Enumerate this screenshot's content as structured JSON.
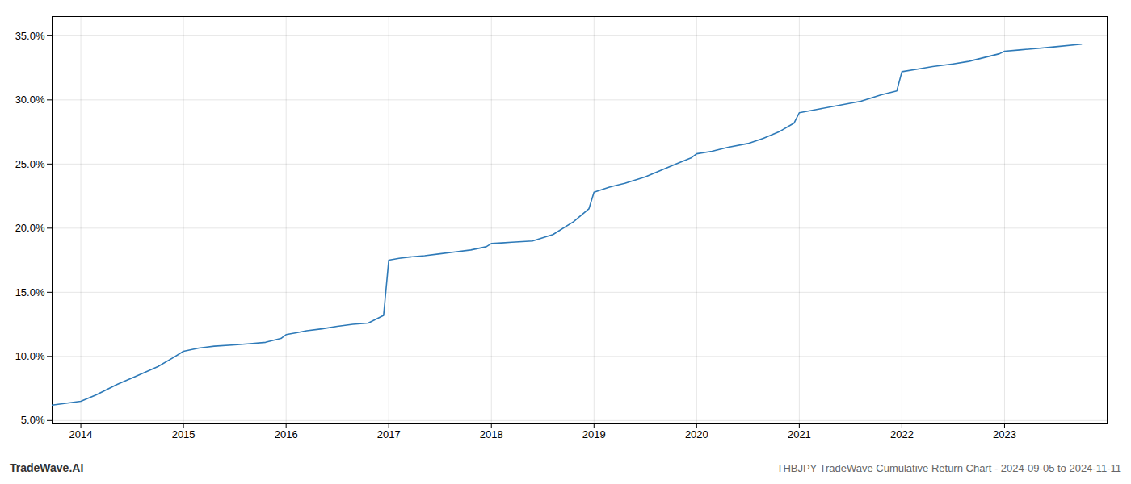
{
  "chart_data": {
    "type": "line",
    "title": "THBJPY TradeWave Cumulative Return Chart - 2024-09-05 to 2024-11-11",
    "annotations": [
      "TradeWave.AI"
    ],
    "color": "#2e7ab8",
    "x": [
      2013.72,
      2014.0,
      2014.15,
      2014.35,
      2014.55,
      2014.75,
      2014.9,
      2015.0,
      2015.15,
      2015.3,
      2015.5,
      2015.65,
      2015.8,
      2015.95,
      2016.0,
      2016.1,
      2016.2,
      2016.35,
      2016.5,
      2016.65,
      2016.8,
      2016.95,
      2017.0,
      2017.1,
      2017.2,
      2017.35,
      2017.5,
      2017.65,
      2017.8,
      2017.95,
      2018.0,
      2018.1,
      2018.2,
      2018.4,
      2018.6,
      2018.8,
      2018.95,
      2019.0,
      2019.15,
      2019.3,
      2019.5,
      2019.65,
      2019.8,
      2019.95,
      2020.0,
      2020.15,
      2020.3,
      2020.5,
      2020.65,
      2020.8,
      2020.95,
      2021.0,
      2021.2,
      2021.4,
      2021.6,
      2021.8,
      2021.95,
      2022.0,
      2022.15,
      2022.3,
      2022.5,
      2022.65,
      2022.8,
      2022.95,
      2023.0,
      2023.15,
      2023.3,
      2023.5,
      2023.75
    ],
    "values": [
      6.2,
      6.5,
      7.0,
      7.8,
      8.5,
      9.2,
      9.9,
      10.4,
      10.65,
      10.8,
      10.9,
      11.0,
      11.1,
      11.4,
      11.7,
      11.85,
      12.0,
      12.15,
      12.35,
      12.5,
      12.6,
      13.2,
      17.5,
      17.65,
      17.75,
      17.85,
      18.0,
      18.15,
      18.3,
      18.55,
      18.8,
      18.85,
      18.9,
      19.0,
      19.5,
      20.5,
      21.5,
      22.8,
      23.2,
      23.5,
      24.0,
      24.5,
      25.0,
      25.5,
      25.8,
      26.0,
      26.3,
      26.6,
      27.0,
      27.5,
      28.2,
      29.0,
      29.3,
      29.6,
      29.9,
      30.4,
      30.7,
      32.2,
      32.4,
      32.6,
      32.8,
      33.0,
      33.3,
      33.6,
      33.8,
      33.9,
      34.0,
      34.15,
      34.35
    ],
    "xlim": [
      2013.72,
      2024.0
    ],
    "xticks": [
      2014,
      2015,
      2016,
      2017,
      2018,
      2019,
      2020,
      2021,
      2022,
      2023
    ],
    "ylim": [
      4.8,
      36.5
    ],
    "yticks": [
      {
        "value": 5.0,
        "label": "5.0%"
      },
      {
        "value": 10.0,
        "label": "10.0%"
      },
      {
        "value": 15.0,
        "label": "15.0%"
      },
      {
        "value": 20.0,
        "label": "20.0%"
      },
      {
        "value": 25.0,
        "label": "25.0%"
      },
      {
        "value": 30.0,
        "label": "30.0%"
      },
      {
        "value": 35.0,
        "label": "35.0%"
      }
    ],
    "grid": true
  }
}
